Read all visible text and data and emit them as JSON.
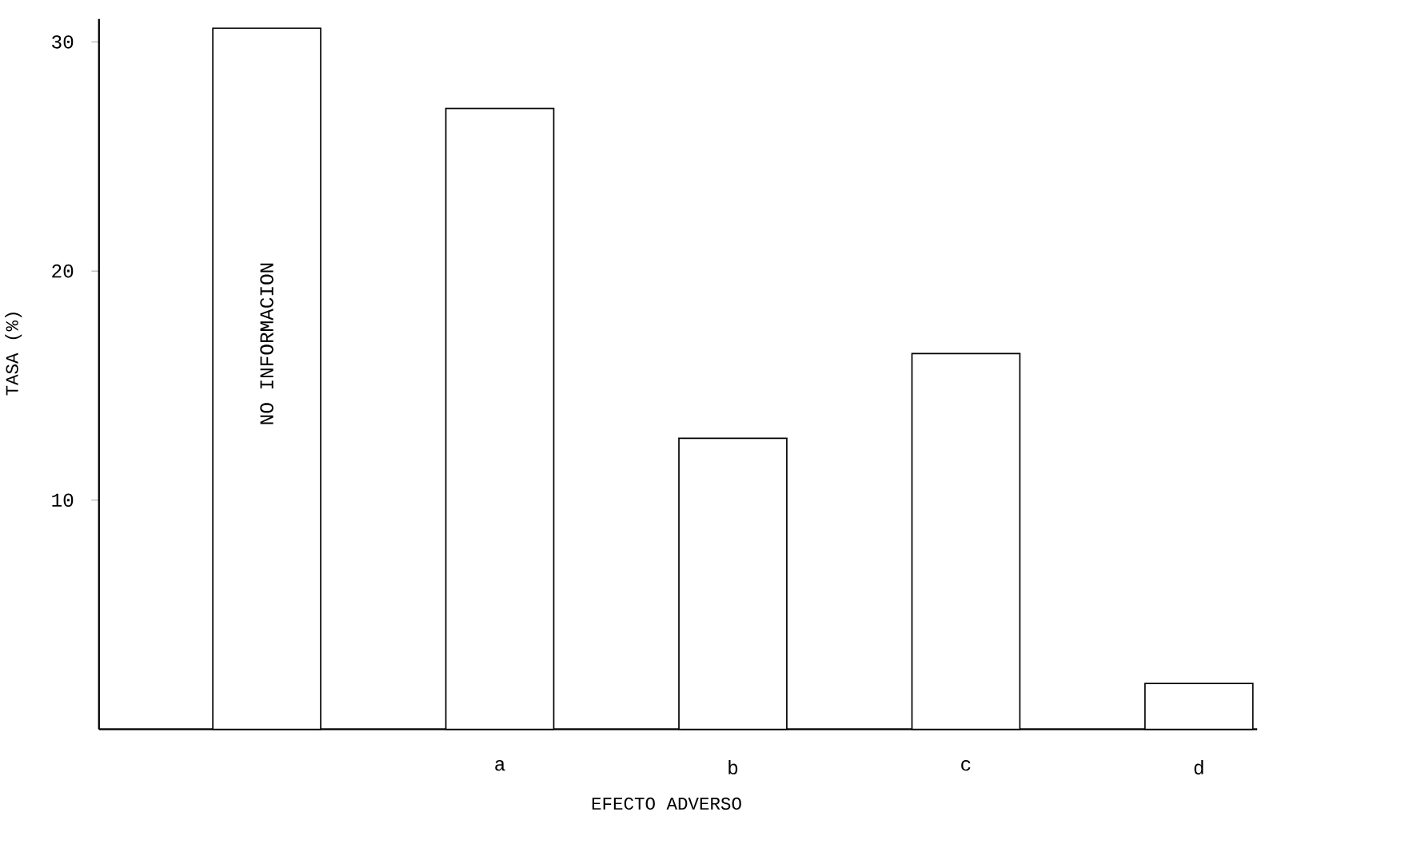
{
  "chart_data": {
    "type": "bar",
    "xlabel": "EFECTO ADVERSO",
    "ylabel": "TASA (%)",
    "categories": [
      "NO INFORMACION",
      "a",
      "b",
      "c",
      "d"
    ],
    "values": [
      30.6,
      27.1,
      12.7,
      16.4,
      2.0
    ],
    "color": "#ffffff",
    "ylim": [
      0,
      31
    ],
    "yticks": [
      10,
      20,
      30
    ],
    "grid": false
  }
}
